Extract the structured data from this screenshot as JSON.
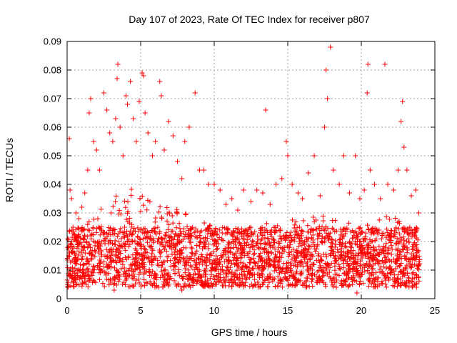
{
  "chart_data": {
    "type": "scatter",
    "title": "Day 107 of 2023, Rate Of TEC Index for receiver p807",
    "xlabel": "GPS time / hours",
    "ylabel": "ROTI / TECUs",
    "xlim": [
      0,
      25
    ],
    "ylim": [
      0,
      0.09
    ],
    "xticks": [
      0,
      5,
      10,
      15,
      20,
      25
    ],
    "yticks": [
      0,
      0.01,
      0.02,
      0.03,
      0.04,
      0.05,
      0.06,
      0.07,
      0.08,
      0.09
    ],
    "xtick_labels": [
      "0",
      "5",
      "10",
      "15",
      "20",
      "25"
    ],
    "ytick_labels": [
      "0",
      "0.01",
      "0.02",
      "0.03",
      "0.04",
      "0.05",
      "0.06",
      "0.07",
      "0.08",
      "0.09"
    ],
    "grid": true,
    "marker": "+",
    "color": "#ff0000",
    "series": [
      {
        "points": [
          [
            0.05,
            0.021
          ],
          [
            0.1,
            0.015
          ],
          [
            0.15,
            0.056
          ],
          [
            0.2,
            0.038
          ],
          [
            0.3,
            0.035
          ],
          [
            0.4,
            0.025
          ],
          [
            0.6,
            0.03
          ],
          [
            0.8,
            0.028
          ],
          [
            1.0,
            0.032
          ],
          [
            1.2,
            0.037
          ],
          [
            1.4,
            0.045
          ],
          [
            1.5,
            0.065
          ],
          [
            1.6,
            0.07
          ],
          [
            1.8,
            0.055
          ],
          [
            2.0,
            0.052
          ],
          [
            2.2,
            0.045
          ],
          [
            2.5,
            0.072
          ],
          [
            2.7,
            0.066
          ],
          [
            2.9,
            0.058
          ],
          [
            3.1,
            0.055
          ],
          [
            3.3,
            0.063
          ],
          [
            3.4,
            0.077
          ],
          [
            3.45,
            0.082
          ],
          [
            3.6,
            0.06
          ],
          [
            3.8,
            0.05
          ],
          [
            4.0,
            0.071
          ],
          [
            4.1,
            0.068
          ],
          [
            4.3,
            0.076
          ],
          [
            4.5,
            0.063
          ],
          [
            4.7,
            0.055
          ],
          [
            4.9,
            0.069
          ],
          [
            5.1,
            0.079
          ],
          [
            5.2,
            0.078
          ],
          [
            5.3,
            0.065
          ],
          [
            5.5,
            0.058
          ],
          [
            5.8,
            0.05
          ],
          [
            6.0,
            0.055
          ],
          [
            6.3,
            0.076
          ],
          [
            6.4,
            0.071
          ],
          [
            6.6,
            0.052
          ],
          [
            6.9,
            0.062
          ],
          [
            7.2,
            0.057
          ],
          [
            7.5,
            0.048
          ],
          [
            7.8,
            0.042
          ],
          [
            8.0,
            0.055
          ],
          [
            8.3,
            0.06
          ],
          [
            8.7,
            0.072
          ],
          [
            9.0,
            0.045
          ],
          [
            9.3,
            0.045
          ],
          [
            9.6,
            0.04
          ],
          [
            10.0,
            0.04
          ],
          [
            10.4,
            0.038
          ],
          [
            10.8,
            0.033
          ],
          [
            11.2,
            0.035
          ],
          [
            11.6,
            0.031
          ],
          [
            12.0,
            0.038
          ],
          [
            12.5,
            0.034
          ],
          [
            12.9,
            0.038
          ],
          [
            13.3,
            0.037
          ],
          [
            13.5,
            0.066
          ],
          [
            13.8,
            0.033
          ],
          [
            14.2,
            0.04
          ],
          [
            14.6,
            0.042
          ],
          [
            14.9,
            0.055
          ],
          [
            15.0,
            0.05
          ],
          [
            15.3,
            0.04
          ],
          [
            15.7,
            0.037
          ],
          [
            16.0,
            0.035
          ],
          [
            16.4,
            0.044
          ],
          [
            16.8,
            0.05
          ],
          [
            17.2,
            0.036
          ],
          [
            17.5,
            0.06
          ],
          [
            17.6,
            0.08
          ],
          [
            17.7,
            0.07
          ],
          [
            17.9,
            0.088
          ],
          [
            18.1,
            0.045
          ],
          [
            18.5,
            0.04
          ],
          [
            18.8,
            0.05
          ],
          [
            19.2,
            0.037
          ],
          [
            19.6,
            0.05
          ],
          [
            19.9,
            0.035
          ],
          [
            20.2,
            0.038
          ],
          [
            20.4,
            0.072
          ],
          [
            20.45,
            0.082
          ],
          [
            20.6,
            0.045
          ],
          [
            20.9,
            0.04
          ],
          [
            21.3,
            0.035
          ],
          [
            21.6,
            0.082
          ],
          [
            21.8,
            0.04
          ],
          [
            22.2,
            0.038
          ],
          [
            22.5,
            0.045
          ],
          [
            22.7,
            0.062
          ],
          [
            22.8,
            0.069
          ],
          [
            22.9,
            0.053
          ],
          [
            23.1,
            0.045
          ],
          [
            23.4,
            0.036
          ],
          [
            23.7,
            0.038
          ],
          [
            23.9,
            0.03
          ],
          [
            12.1,
            0.008
          ],
          [
            7.8,
            0.003
          ],
          [
            3.2,
            0.003
          ],
          [
            18.3,
            0.004
          ],
          [
            19.7,
            0.002
          ],
          [
            15.5,
            0.005
          ]
        ],
        "density_band": {
          "x_range": [
            0,
            24
          ],
          "typical_min": 0.004,
          "typical_max": 0.025,
          "note_values": [
            [
              0,
              0.02
            ],
            [
              2,
              0.03
            ],
            [
              4,
              0.04
            ],
            [
              6,
              0.035
            ],
            [
              8,
              0.03
            ],
            [
              10,
              0.025
            ],
            [
              12,
              0.025
            ],
            [
              14,
              0.028
            ],
            [
              16,
              0.028
            ],
            [
              18,
              0.03
            ],
            [
              20,
              0.025
            ],
            [
              22,
              0.03
            ],
            [
              24,
              0.022
            ]
          ]
        }
      }
    ]
  }
}
